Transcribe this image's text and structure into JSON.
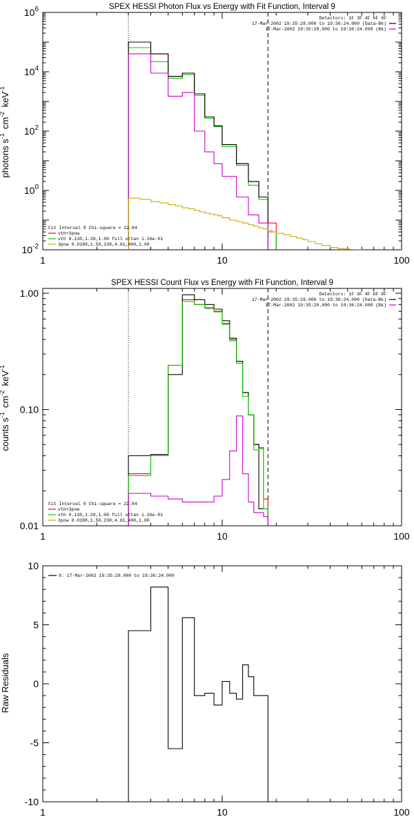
{
  "chart_data": [
    {
      "type": "line",
      "title": "SPEX HESSI Photon Flux vs Energy with Fit Function, Interval 9",
      "ylabel": "photons s^-1 cm^-2 keV^-1",
      "xscale": "log",
      "yscale": "log",
      "xlim": [
        1,
        100
      ],
      "ylim": [
        0.01,
        1000000
      ],
      "xticks": [
        {
          "v": 1,
          "label": "1"
        },
        {
          "v": 10,
          "label": "10"
        },
        {
          "v": 100,
          "label": "100"
        }
      ],
      "yticks": [
        {
          "v": 0.01,
          "base": "10",
          "exp": "-2"
        },
        {
          "v": 1,
          "base": "10",
          "exp": "0"
        },
        {
          "v": 100,
          "base": "10",
          "exp": "2"
        },
        {
          "v": 10000,
          "base": "10",
          "exp": "4"
        },
        {
          "v": 1000000,
          "base": "10",
          "exp": "6"
        }
      ],
      "vlines": [
        {
          "x": 3,
          "style": "dotted"
        },
        {
          "x": 18,
          "style": "dashed"
        }
      ],
      "info_top_right": [
        {
          "text": "Detectors: 1F 3F 4F 6F 9F",
          "color": ""
        },
        {
          "text": "17-Mar-2002 19:35:28.000 to 19:36:24.000 (Data-Bk)",
          "color": "#000000"
        },
        {
          "text": "17-Mar-2002 19:35:28.000 to 19:36:24.000 (Bk)",
          "color": "#cc00cc"
        }
      ],
      "fit_info": [
        {
          "text": "Fit Interval  9    Chi-square = 22.84",
          "color": ""
        },
        {
          "text": "vth+3pow",
          "color": "#ff0000"
        },
        {
          "text": "vth 0.130,1.28,1.00  full ottan 1.26e-01",
          "color": "#00cc00"
        },
        {
          "text": "3pow 0.0188,1.50,238,4.61,400,1.00",
          "color": "#ccaa00"
        }
      ],
      "series": [
        {
          "color": "#ff0000",
          "edges": [
            3,
            3.5,
            4,
            4.5,
            5,
            5.5,
            6,
            6.5,
            7,
            7.5,
            8,
            8.5,
            9,
            9.5,
            10,
            11,
            12,
            13,
            14,
            15,
            16,
            17,
            18,
            19,
            20
          ],
          "values": [
            100000,
            100000,
            40000,
            40000,
            7000,
            7000,
            9000,
            9000,
            1800,
            1800,
            300,
            300,
            150,
            150,
            35,
            35,
            8,
            8,
            2,
            2,
            0.6,
            0.6,
            0.08,
            0.08
          ]
        },
        {
          "color": "#00cc00",
          "edges": [
            3,
            3.5,
            4,
            4.5,
            5,
            5.5,
            6,
            6.5,
            7,
            7.5,
            8,
            8.5,
            9,
            9.5,
            10,
            11,
            12,
            13,
            14,
            15,
            16,
            17,
            18,
            19,
            20
          ],
          "values": [
            65000,
            65000,
            22000,
            22000,
            6000,
            6000,
            8000,
            8000,
            1600,
            1600,
            270,
            270,
            140,
            140,
            30,
            30,
            7,
            7,
            1.5,
            1.5,
            0.5,
            0.5,
            0.04,
            0.04
          ]
        },
        {
          "color": "#000000",
          "edges": [
            3,
            3.5,
            4,
            4.5,
            5,
            5.5,
            6,
            6.5,
            7,
            7.5,
            8,
            8.5,
            9,
            9.5,
            10,
            11,
            12,
            13,
            14,
            15,
            16,
            17,
            18
          ],
          "values": [
            100000,
            100000,
            40000,
            40000,
            7000,
            7000,
            9000,
            9000,
            1800,
            1800,
            300,
            300,
            150,
            150,
            35,
            35,
            8,
            8,
            2,
            2,
            0.6,
            0.6
          ]
        },
        {
          "color": "#cc00cc",
          "edges": [
            3,
            3.5,
            4,
            4.5,
            5,
            5.5,
            6,
            6.5,
            7,
            7.5,
            8,
            8.5,
            9,
            9.5,
            10,
            11,
            12,
            13,
            14,
            15,
            16,
            17,
            18
          ],
          "values": [
            40000,
            40000,
            9000,
            9000,
            1500,
            1500,
            2000,
            2000,
            100,
            100,
            20,
            20,
            8,
            8,
            3,
            3,
            0.6,
            0.6,
            0.15,
            0.15,
            0.08,
            0.08
          ]
        },
        {
          "color": "#ccaa00",
          "edges": [
            3,
            3.5,
            4,
            4.5,
            5,
            5.5,
            6,
            6.5,
            7,
            7.5,
            8,
            8.5,
            9,
            9.5,
            10,
            11,
            12,
            13,
            14,
            15,
            16,
            17,
            18,
            19,
            20,
            22,
            24,
            26,
            28,
            30,
            33,
            36,
            40,
            44,
            48,
            52,
            56,
            60
          ],
          "values": [
            0.55,
            0.5,
            0.42,
            0.38,
            0.33,
            0.3,
            0.26,
            0.24,
            0.21,
            0.19,
            0.17,
            0.16,
            0.15,
            0.14,
            0.12,
            0.1,
            0.09,
            0.08,
            0.07,
            0.062,
            0.055,
            0.05,
            0.045,
            0.04,
            0.036,
            0.032,
            0.028,
            0.025,
            0.022,
            0.019,
            0.016,
            0.014,
            0.012,
            0.011,
            0.0105,
            0.0102,
            0.0101
          ]
        }
      ]
    },
    {
      "type": "line",
      "title": "SPEX HESSI Count Flux vs Energy with Fit Function, Interval 9",
      "ylabel": "counts s^-1 cm^-2 keV^-1",
      "xscale": "log",
      "yscale": "log",
      "xlim": [
        1,
        100
      ],
      "ylim": [
        0.01,
        1.1
      ],
      "xticks": [
        {
          "v": 1,
          "label": "1"
        },
        {
          "v": 10,
          "label": "10"
        },
        {
          "v": 100,
          "label": "100"
        }
      ],
      "yticks": [
        {
          "v": 0.01,
          "label": "0.01"
        },
        {
          "v": 0.1,
          "label": "0.10"
        },
        {
          "v": 1,
          "label": "1.00"
        }
      ],
      "vlines": [
        {
          "x": 3,
          "style": "dotted"
        },
        {
          "x": 18,
          "style": "dashed"
        }
      ],
      "info_top_right": [
        {
          "text": "Detectors: 1F 3F 4F 6F 9F",
          "color": ""
        },
        {
          "text": "17-Mar-2002 19:35:28.000 to 19:36:24.000 (Data-Bk)",
          "color": "#000000"
        },
        {
          "text": "17-Mar-2002 19:35:28.000 to 19:36:24.000 (Bk)",
          "color": "#cc00cc"
        }
      ],
      "fit_info": [
        {
          "text": "Fit Interval  9    Chi-square = 22.84",
          "color": ""
        },
        {
          "text": "vth+3pow",
          "color": "#ff0000"
        },
        {
          "text": "vth 0.130,1.28,1.00  full ottan 1.26e-01",
          "color": "#00cc00"
        },
        {
          "text": "3pow 0.0188,1.50,238,4.61,400,1.00",
          "color": "#ccaa00"
        }
      ],
      "series": [
        {
          "color": "#ff0000",
          "edges": [
            3,
            4,
            5,
            6,
            7,
            8,
            9,
            10,
            11,
            12,
            13,
            14,
            15,
            16,
            17,
            18
          ],
          "values": [
            0.028,
            0.041,
            0.24,
            0.88,
            0.8,
            0.75,
            0.7,
            0.55,
            0.4,
            0.26,
            0.14,
            0.09,
            0.05,
            0.047,
            0.017
          ]
        },
        {
          "color": "#000000",
          "edges": [
            3,
            4,
            5,
            6,
            7,
            8,
            9,
            10,
            11,
            12,
            13,
            14,
            15,
            16,
            17,
            18
          ],
          "values": [
            0.04,
            0.041,
            0.2,
            0.97,
            0.88,
            0.8,
            0.73,
            0.58,
            0.41,
            0.26,
            0.14,
            0.09,
            0.05,
            0.014,
            0.014
          ]
        },
        {
          "color": "#00cc00",
          "edges": [
            3,
            4,
            5,
            6,
            7,
            8,
            9,
            10,
            11,
            12,
            13,
            14,
            15,
            16,
            17,
            18
          ],
          "values": [
            0.027,
            0.04,
            0.24,
            0.85,
            0.8,
            0.74,
            0.69,
            0.54,
            0.39,
            0.25,
            0.13,
            0.09,
            0.045,
            0.046,
            0.014
          ]
        },
        {
          "color": "#cc00cc",
          "edges": [
            3,
            4,
            5,
            6,
            7,
            8,
            9,
            10,
            11,
            12,
            13,
            14,
            15,
            16,
            17,
            18
          ],
          "values": [
            0.019,
            0.018,
            0.017,
            0.016,
            0.016,
            0.016,
            0.018,
            0.025,
            0.044,
            0.088,
            0.028,
            0.016,
            0.013,
            0.013,
            0.012
          ]
        }
      ]
    },
    {
      "type": "line",
      "title": "",
      "ylabel": "Raw Residuals",
      "xscale": "log",
      "yscale": "linear",
      "xlim": [
        1,
        100
      ],
      "ylim": [
        -10,
        10
      ],
      "xticks": [
        {
          "v": 1,
          "label": "1"
        },
        {
          "v": 10,
          "label": "10"
        },
        {
          "v": 100,
          "label": "100"
        }
      ],
      "yticks": [
        {
          "v": -10,
          "label": "-10"
        },
        {
          "v": -5,
          "label": "-5"
        },
        {
          "v": 0,
          "label": "0"
        },
        {
          "v": 5,
          "label": "5"
        },
        {
          "v": 10,
          "label": "10"
        }
      ],
      "legend": [
        {
          "text": "9: 17-Mar-2002 19:35:28.000 to 19:36:24.000",
          "color": "#000000"
        }
      ],
      "series": [
        {
          "color": "#000000",
          "edges": [
            3,
            4,
            5,
            6,
            7,
            8,
            9,
            10,
            11,
            12,
            13,
            14,
            15,
            16,
            17,
            18
          ],
          "values": [
            4.5,
            8.2,
            -5.5,
            5.6,
            -1.0,
            -0.8,
            -1.8,
            0.2,
            -0.8,
            -1.3,
            1.6,
            0.6,
            -1.0,
            -1.0,
            -1.0
          ],
          "drop_to": -10
        }
      ]
    }
  ]
}
